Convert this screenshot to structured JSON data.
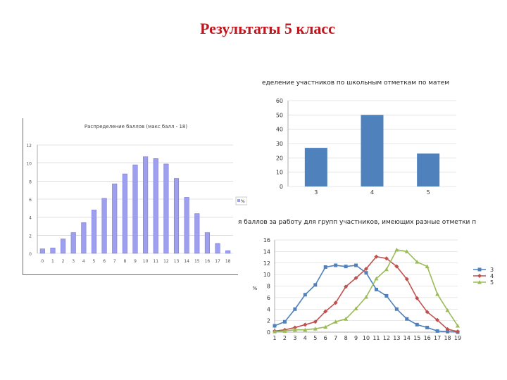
{
  "slide": {
    "title": "Результаты 5 класс"
  },
  "chart_data": [
    {
      "type": "bar",
      "title": "Распределение баллов (макс балл - 18)",
      "legend": [
        "%"
      ],
      "categories": [
        "0",
        "1",
        "2",
        "3",
        "4",
        "5",
        "6",
        "7",
        "8",
        "9",
        "10",
        "11",
        "12",
        "13",
        "14",
        "15",
        "16",
        "17",
        "18"
      ],
      "values": [
        0.5,
        0.6,
        1.6,
        2.3,
        3.4,
        4.8,
        6.1,
        7.7,
        8.8,
        9.8,
        10.7,
        10.5,
        9.9,
        8.3,
        6.2,
        4.4,
        2.3,
        1.1,
        0.3
      ],
      "ylim": [
        0,
        12
      ],
      "yticks": [
        "0",
        "2",
        "4",
        "6",
        "8",
        "10",
        "12"
      ],
      "grid": true,
      "color": "#9f9fef"
    },
    {
      "type": "bar",
      "title": "еделение участников по школьным отметкам по матем",
      "categories": [
        "3",
        "4",
        "5"
      ],
      "values": [
        27,
        50,
        23
      ],
      "ylim": [
        0,
        60
      ],
      "yticks": [
        "0",
        "10",
        "20",
        "30",
        "40",
        "50",
        "60"
      ],
      "grid": true,
      "color": "#4f81bd"
    },
    {
      "type": "line",
      "title": "я баллов за работу для групп участников, имеющих разные отметки п",
      "ylabel": "%",
      "x": [
        "1",
        "2",
        "3",
        "4",
        "5",
        "6",
        "7",
        "8",
        "9",
        "10",
        "11",
        "12",
        "13",
        "14",
        "15",
        "16",
        "17",
        "18",
        "19"
      ],
      "ylim": [
        0,
        16
      ],
      "yticks": [
        "0",
        "2",
        "4",
        "6",
        "8",
        "10",
        "12",
        "14",
        "16"
      ],
      "grid": true,
      "series": [
        {
          "name": "3",
          "color": "#4f81bd",
          "marker": "square",
          "values": [
            1.1,
            1.8,
            4.0,
            6.5,
            8.2,
            11.3,
            11.6,
            11.4,
            11.6,
            10.3,
            7.4,
            6.3,
            4.0,
            2.3,
            1.3,
            0.8,
            0.2,
            0.1,
            0.0
          ]
        },
        {
          "name": "4",
          "color": "#c0504d",
          "marker": "diamond",
          "values": [
            0.2,
            0.4,
            0.8,
            1.3,
            1.8,
            3.6,
            5.1,
            7.9,
            9.4,
            11.0,
            13.1,
            12.8,
            11.4,
            9.2,
            5.9,
            3.5,
            2.1,
            0.5,
            0.1
          ]
        },
        {
          "name": "5",
          "color": "#9bbb59",
          "marker": "triangle",
          "values": [
            0.1,
            0.2,
            0.4,
            0.4,
            0.6,
            0.9,
            1.8,
            2.3,
            4.1,
            6.1,
            9.3,
            10.9,
            14.3,
            14.0,
            12.2,
            11.4,
            6.6,
            3.8,
            1.1
          ]
        }
      ]
    }
  ]
}
